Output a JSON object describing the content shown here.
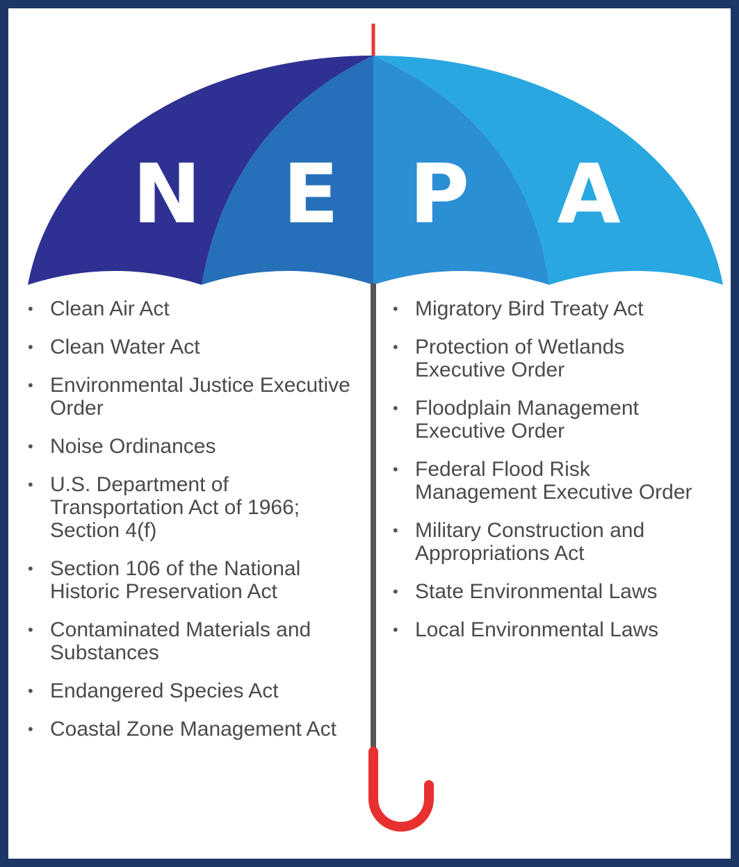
{
  "letters": [
    "N",
    "E",
    "P",
    "A"
  ],
  "left_list": [
    "Clean Air Act",
    "Clean Water Act",
    "Environmental Justice Executive Order",
    "Noise Ordinances",
    "U.S. Department of Transportation Act of 1966; Section 4(f)",
    "Section 106 of the National Historic Preservation Act",
    "Contaminated Materials and Substances",
    "Endangered Species Act",
    "Coastal Zone Management Act"
  ],
  "right_list": [
    "Migratory Bird Treaty Act",
    "Protection of Wetlands Executive Order",
    "Floodplain Management Executive Order",
    "Federal Flood Risk Management Executive Order",
    "Military Construction and Appropriations Act",
    "State Environmental Laws",
    "Local Environmental Laws"
  ]
}
